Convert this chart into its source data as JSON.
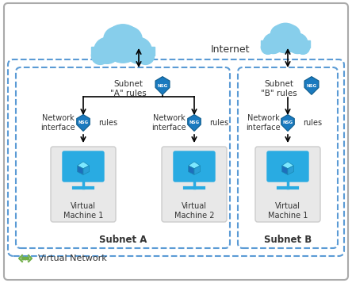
{
  "bg_color": "#ffffff",
  "border_color": "#aaaaaa",
  "vnet_border_color": "#5b9bd5",
  "cloud_color": "#87CEEB",
  "cloud_edge": "#5bacd8",
  "nsg_face": "#1a7abf",
  "nsg_edge": "#0d5a8a",
  "nsg_text": "NSG",
  "vm_box_face": "#e8e8e8",
  "vm_box_edge": "#cccccc",
  "monitor_color": "#29abe2",
  "monitor_light": "#00bfff",
  "cube_top": "#7de8ff",
  "cube_left": "#1e6fbc",
  "cube_right": "#2a9fd6",
  "arrow_color": "#000000",
  "text_color": "#333333",
  "vnet_dot_color": "#70ad47",
  "internet_label": "Internet",
  "subnet_a_label": "Subnet A",
  "subnet_b_label": "Subnet B",
  "vnet_label": "Virtual Network",
  "subnet_a_rules": "Subnet\n\"A\" rules",
  "subnet_b_rules": "Subnet\n\"B\" rules",
  "ni_label": "Network\ninterface",
  "rules_label": "rules",
  "vm1_label": "Virtual\nMachine 1",
  "vm2_label": "Virtual\nMachine 2",
  "vm1b_label": "Virtual\nMachine 1"
}
